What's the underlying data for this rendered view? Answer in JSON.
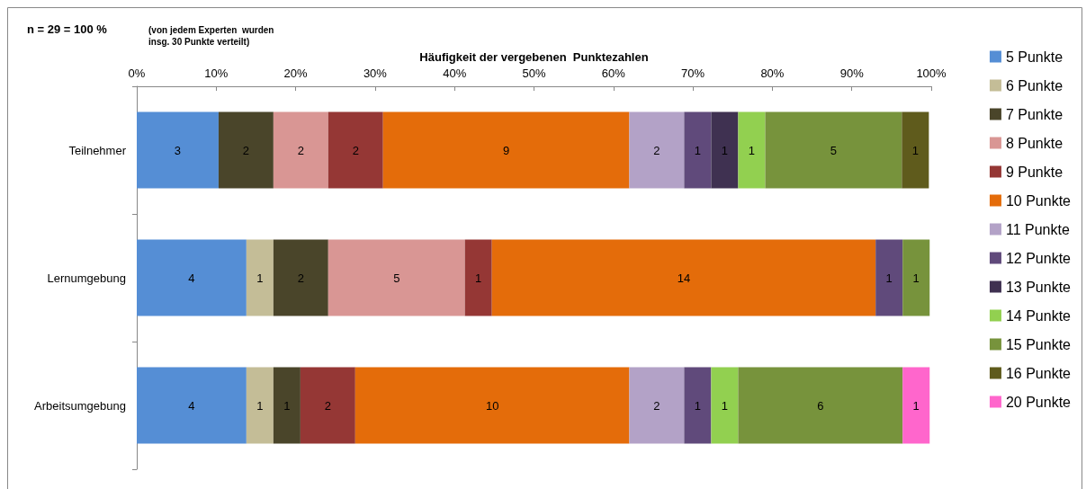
{
  "chart_data": {
    "type": "bar",
    "orientation": "horizontal",
    "stacked": true,
    "xlabel": "Häufigkeit der vergebenen  Punktezahlen",
    "annotations": [
      "n = 29 = 100 %",
      "(von jedem Experten  wurden\ninsg. 30 Punkte verteilt)",
      "3",
      "2",
      "2",
      "2",
      "9",
      "2",
      "1",
      "1",
      "1",
      "5",
      "1",
      "4",
      "1",
      "2",
      "5",
      "1",
      "14",
      "1",
      "1",
      "4",
      "1",
      "1",
      "2",
      "10",
      "2",
      "1",
      "1",
      "6",
      "1"
    ],
    "categories": [
      "Teilnehmer",
      "Lernumgebung",
      "Arbeitsumgebung"
    ],
    "xlim": [
      0,
      100
    ],
    "xticks": [
      {
        "value": 0,
        "label": "0%"
      },
      {
        "value": 10,
        "label": "10%"
      },
      {
        "value": 20,
        "label": "20%"
      },
      {
        "value": 30,
        "label": "30%"
      },
      {
        "value": 40,
        "label": "40%"
      },
      {
        "value": 50,
        "label": "50%"
      },
      {
        "value": 60,
        "label": "60%"
      },
      {
        "value": 70,
        "label": "70%"
      },
      {
        "value": 80,
        "label": "80%"
      },
      {
        "value": 90,
        "label": "90%"
      },
      {
        "value": 100,
        "label": "100%"
      }
    ],
    "grid": false,
    "legend": "right",
    "series": [
      {
        "name": "5 Punkte",
        "color": "#558ed5",
        "values": [
          10.3,
          13.8,
          13.8
        ]
      },
      {
        "name": "6 Punkte",
        "color": "#c4bd97",
        "values": [
          null,
          3.4,
          3.4
        ]
      },
      {
        "name": "7 Punkte",
        "color": "#4a452a",
        "values": [
          6.9,
          6.9,
          3.4
        ]
      },
      {
        "name": "8 Punkte",
        "color": "#d99694",
        "values": [
          6.9,
          17.2,
          null
        ]
      },
      {
        "name": "9 Punkte",
        "color": "#953735",
        "values": [
          6.9,
          3.4,
          6.9
        ]
      },
      {
        "name": "10 Punkte",
        "color": "#e46c0a",
        "values": [
          31.0,
          48.3,
          34.5
        ]
      },
      {
        "name": "11 Punkte",
        "color": "#b3a2c7",
        "values": [
          6.9,
          null,
          6.9
        ]
      },
      {
        "name": "12 Punkte",
        "color": "#604a7b",
        "values": [
          3.4,
          3.4,
          3.4
        ]
      },
      {
        "name": "13 Punkte",
        "color": "#3f3151",
        "values": [
          3.4,
          null,
          null
        ]
      },
      {
        "name": "14 Punkte",
        "color": "#92d050",
        "values": [
          3.4,
          null,
          3.4
        ]
      },
      {
        "name": "15 Punkte",
        "color": "#77933c",
        "values": [
          17.2,
          3.4,
          20.7
        ]
      },
      {
        "name": "16 Punkte",
        "color": "#5f5b1c",
        "values": [
          3.4,
          null,
          null
        ]
      },
      {
        "name": "20 Punkte",
        "color": "#ff66cc",
        "values": [
          null,
          null,
          3.4
        ]
      }
    ]
  }
}
